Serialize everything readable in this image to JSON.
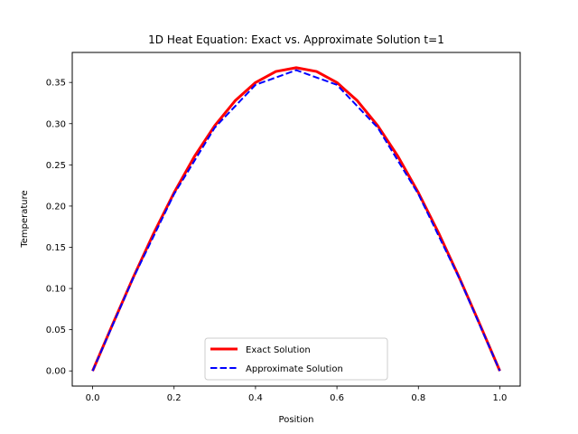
{
  "chart_data": {
    "type": "line",
    "title": "1D Heat Equation: Exact vs. Approximate Solution t=1",
    "xlabel": "Position",
    "ylabel": "Temperature",
    "xlim": [
      -0.05,
      1.05
    ],
    "ylim": [
      -0.0184,
      0.3864
    ],
    "xticks": [
      0.0,
      0.2,
      0.4,
      0.6,
      0.8,
      1.0
    ],
    "xtick_labels": [
      "0.0",
      "0.2",
      "0.4",
      "0.6",
      "0.8",
      "1.0"
    ],
    "yticks": [
      0.0,
      0.05,
      0.1,
      0.15,
      0.2,
      0.25,
      0.3,
      0.35
    ],
    "ytick_labels": [
      "0.00",
      "0.05",
      "0.10",
      "0.15",
      "0.20",
      "0.25",
      "0.30",
      "0.35"
    ],
    "grid": false,
    "legend_position": "lower-center",
    "series": [
      {
        "name": "Exact Solution",
        "color": "#ff0000",
        "style": "solid",
        "x": [
          0.0,
          0.05,
          0.1,
          0.15,
          0.2,
          0.25,
          0.3,
          0.35,
          0.4,
          0.45,
          0.5,
          0.55,
          0.6,
          0.65,
          0.7,
          0.75,
          0.8,
          0.85,
          0.9,
          0.95,
          1.0
        ],
        "y": [
          0.0,
          0.0575,
          0.1137,
          0.167,
          0.2162,
          0.2601,
          0.2976,
          0.3278,
          0.3499,
          0.3633,
          0.3679,
          0.3633,
          0.3499,
          0.3278,
          0.2976,
          0.2601,
          0.2162,
          0.167,
          0.1137,
          0.0575,
          0.0
        ]
      },
      {
        "name": "Approximate Solution",
        "color": "#0000ff",
        "style": "dashed",
        "x": [
          0.0,
          0.1,
          0.2,
          0.3,
          0.4,
          0.5,
          0.6,
          0.7,
          0.8,
          0.9,
          1.0
        ],
        "y": [
          0.0,
          0.1128,
          0.2145,
          0.2952,
          0.3471,
          0.3649,
          0.3471,
          0.2952,
          0.2145,
          0.1128,
          0.0
        ]
      }
    ]
  }
}
